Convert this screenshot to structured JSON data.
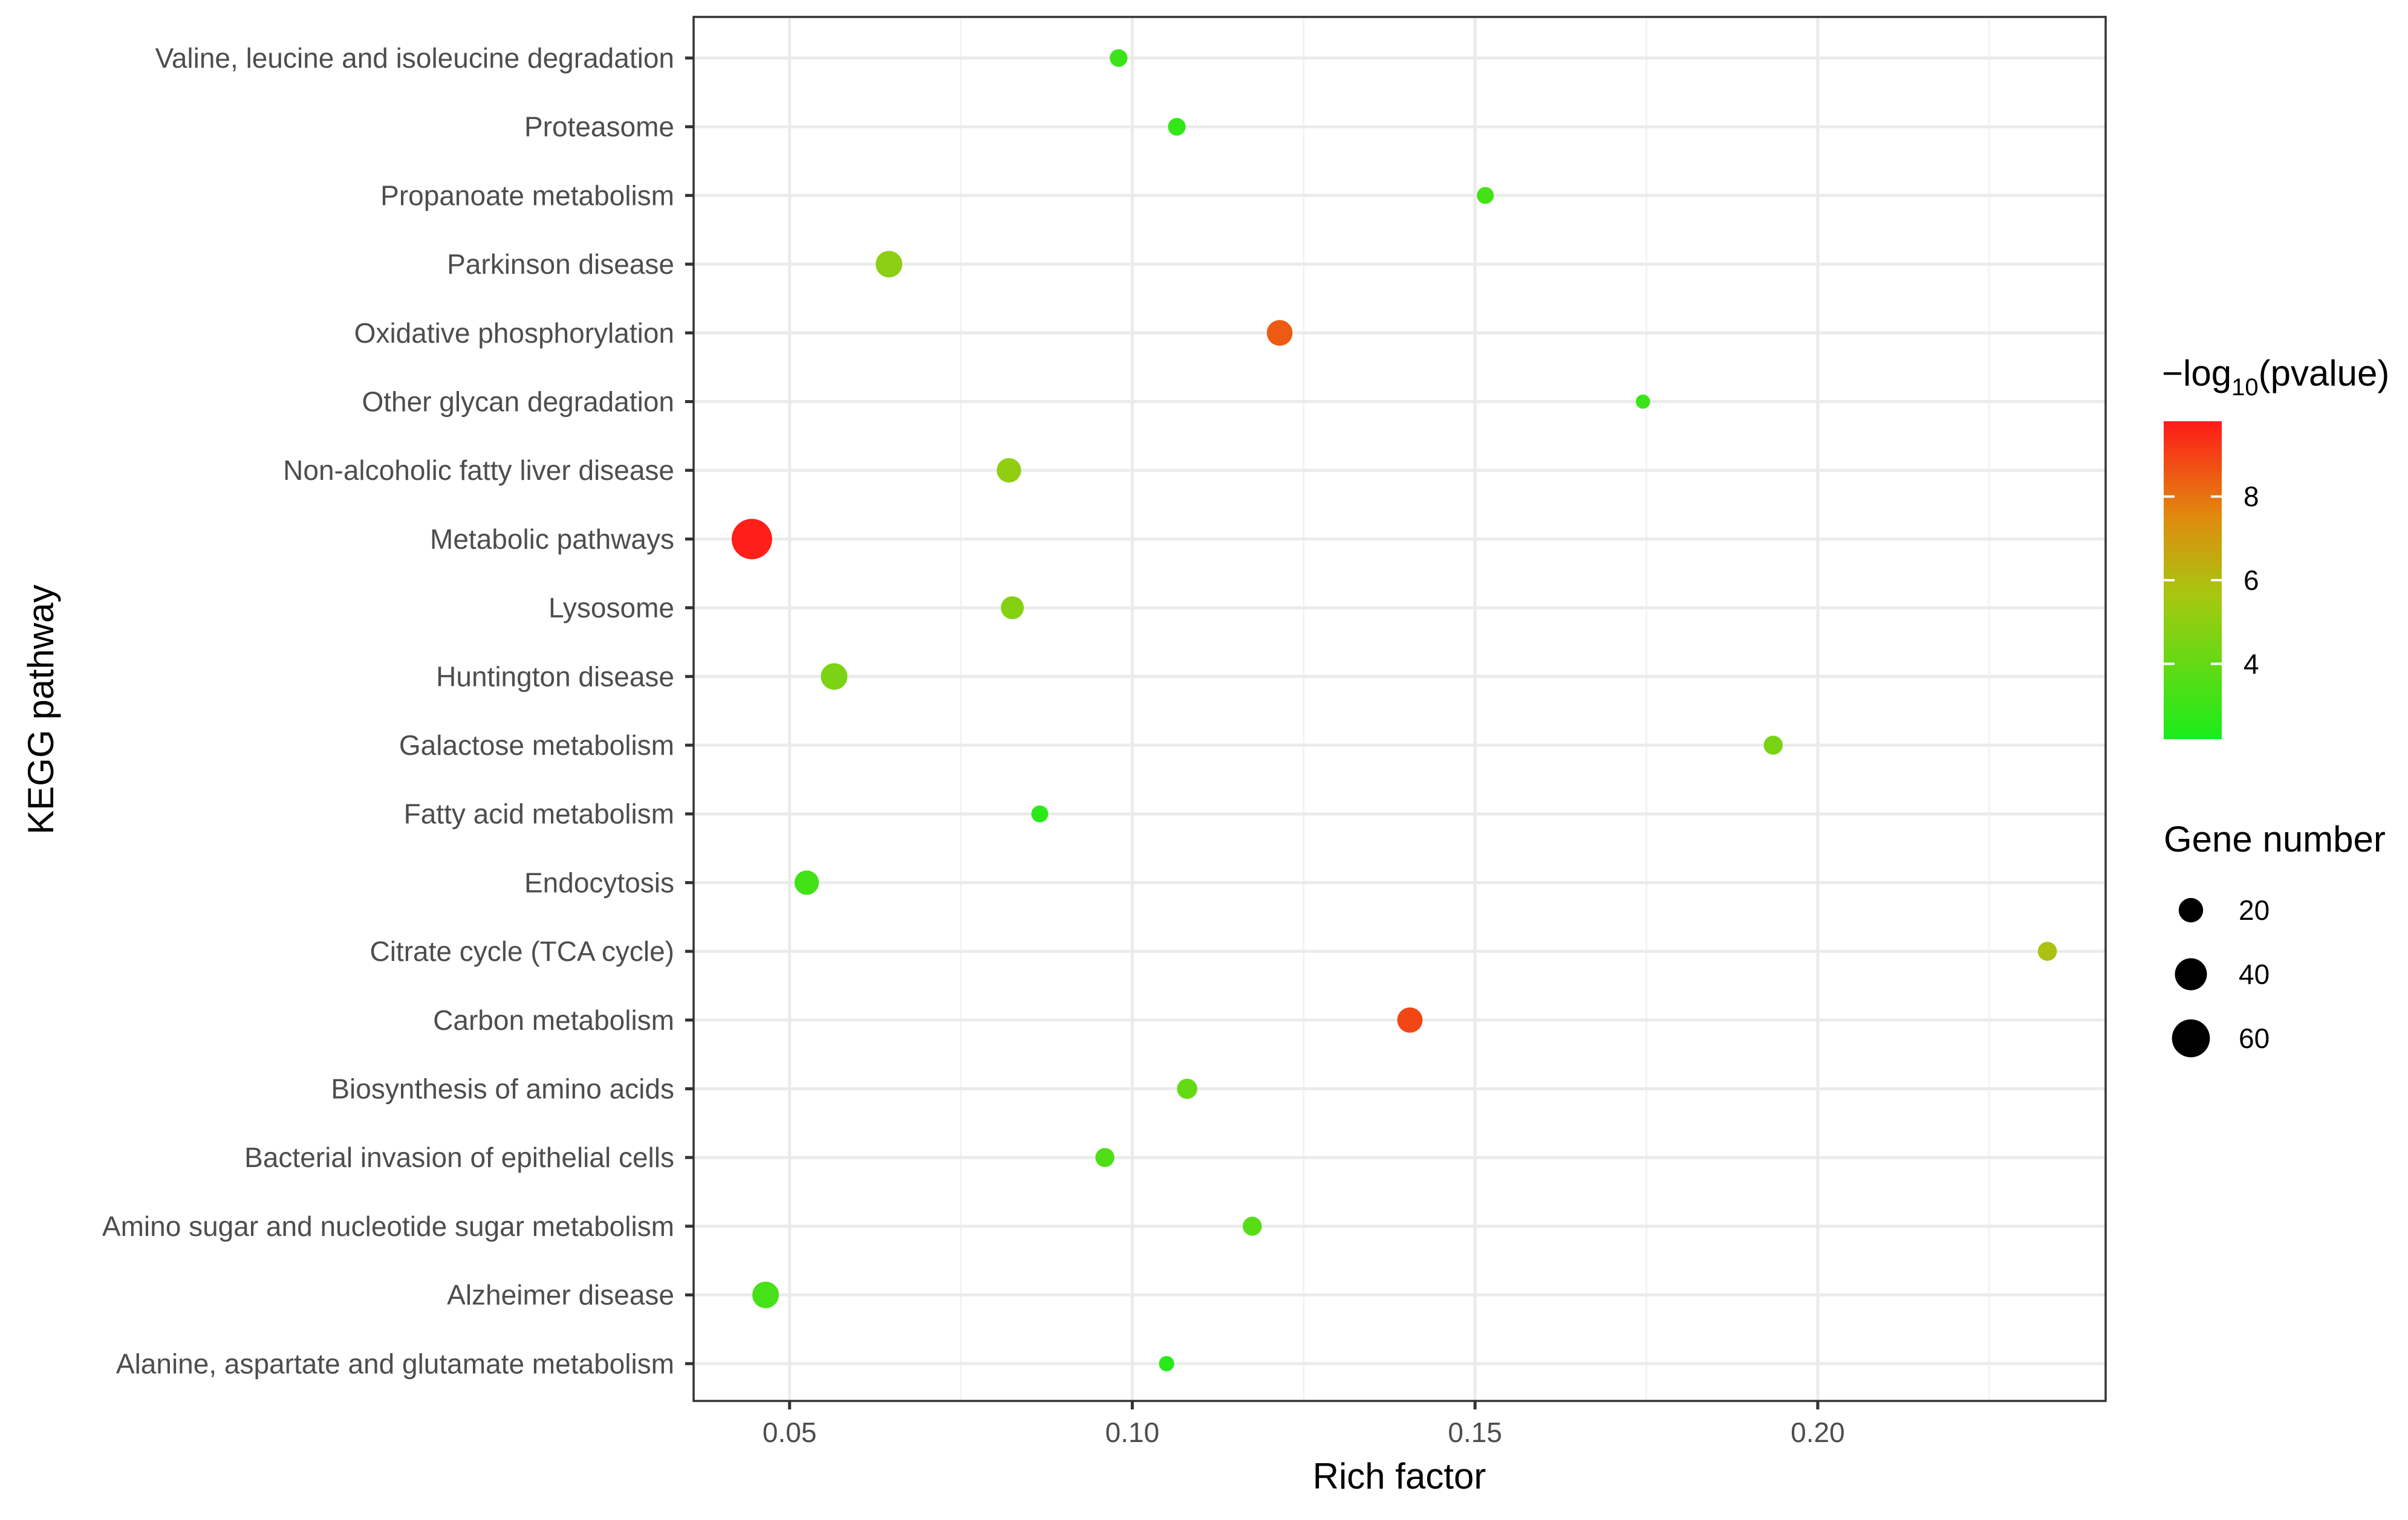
{
  "chart_data": {
    "type": "scatter",
    "title": "",
    "xlabel": "Rich factor",
    "ylabel": "KEGG pathway",
    "xlim": [
      0.036,
      0.242
    ],
    "x_ticks": [
      0.05,
      0.1,
      0.15,
      0.2
    ],
    "x_tick_labels": [
      "0.05",
      "0.10",
      "0.15",
      "0.20"
    ],
    "grid": true,
    "points": [
      {
        "pathway": "Alanine, aspartate and glutamate metabolism",
        "rich_factor": 0.105,
        "gene_number": 5,
        "neg_log10_pvalue": 2.5
      },
      {
        "pathway": "Alzheimer disease",
        "rich_factor": 0.0465,
        "gene_number": 25,
        "neg_log10_pvalue": 3.3
      },
      {
        "pathway": "Amino sugar and nucleotide sugar metabolism",
        "rich_factor": 0.1175,
        "gene_number": 10,
        "neg_log10_pvalue": 3.7
      },
      {
        "pathway": "Bacterial invasion of epithelial cells",
        "rich_factor": 0.096,
        "gene_number": 10,
        "neg_log10_pvalue": 3.5
      },
      {
        "pathway": "Biosynthesis of amino acids",
        "rich_factor": 0.108,
        "gene_number": 12,
        "neg_log10_pvalue": 4.0
      },
      {
        "pathway": "Carbon metabolism",
        "rich_factor": 0.1405,
        "gene_number": 22,
        "neg_log10_pvalue": 8.9
      },
      {
        "pathway": "Citrate cycle (TCA cycle)",
        "rich_factor": 0.2335,
        "gene_number": 10,
        "neg_log10_pvalue": 5.8
      },
      {
        "pathway": "Endocytosis",
        "rich_factor": 0.0525,
        "gene_number": 20,
        "neg_log10_pvalue": 3.2
      },
      {
        "pathway": "Fatty acid metabolism",
        "rich_factor": 0.0865,
        "gene_number": 7,
        "neg_log10_pvalue": 2.6
      },
      {
        "pathway": "Galactose metabolism",
        "rich_factor": 0.1935,
        "gene_number": 10,
        "neg_log10_pvalue": 4.5
      },
      {
        "pathway": "Huntington disease",
        "rich_factor": 0.0565,
        "gene_number": 25,
        "neg_log10_pvalue": 4.6
      },
      {
        "pathway": "Lysosome",
        "rich_factor": 0.0825,
        "gene_number": 17,
        "neg_log10_pvalue": 4.8
      },
      {
        "pathway": "Metabolic pathways",
        "rich_factor": 0.0445,
        "gene_number": 70,
        "neg_log10_pvalue": 9.7
      },
      {
        "pathway": "Non-alcoholic fatty liver disease",
        "rich_factor": 0.082,
        "gene_number": 20,
        "neg_log10_pvalue": 5.1
      },
      {
        "pathway": "Other glycan degradation",
        "rich_factor": 0.1745,
        "gene_number": 4,
        "neg_log10_pvalue": 3.0
      },
      {
        "pathway": "Oxidative phosphorylation",
        "rich_factor": 0.1215,
        "gene_number": 23,
        "neg_log10_pvalue": 8.5
      },
      {
        "pathway": "Parkinson disease",
        "rich_factor": 0.0645,
        "gene_number": 25,
        "neg_log10_pvalue": 5.0
      },
      {
        "pathway": "Propanoate metabolism",
        "rich_factor": 0.1515,
        "gene_number": 7,
        "neg_log10_pvalue": 3.2
      },
      {
        "pathway": "Proteasome",
        "rich_factor": 0.1065,
        "gene_number": 8,
        "neg_log10_pvalue": 2.8
      },
      {
        "pathway": "Valine, leucine and isoleucine degradation",
        "rich_factor": 0.098,
        "gene_number": 8,
        "neg_log10_pvalue": 3.0
      }
    ],
    "color_legend": {
      "title_prefix": "−log",
      "title_subscript": "10",
      "title_suffix": "(pvalue)",
      "range": [
        2.2,
        9.8
      ],
      "ticks": [
        4,
        6,
        8
      ],
      "tick_labels": [
        "4",
        "6",
        "8"
      ],
      "low_color": "#1aed1a",
      "high_color": "#ff1a1a"
    },
    "size_legend": {
      "title": "Gene number",
      "values": [
        20,
        40,
        60
      ],
      "labels": [
        "20",
        "40",
        "60"
      ]
    },
    "point_color_default": "#000000"
  }
}
